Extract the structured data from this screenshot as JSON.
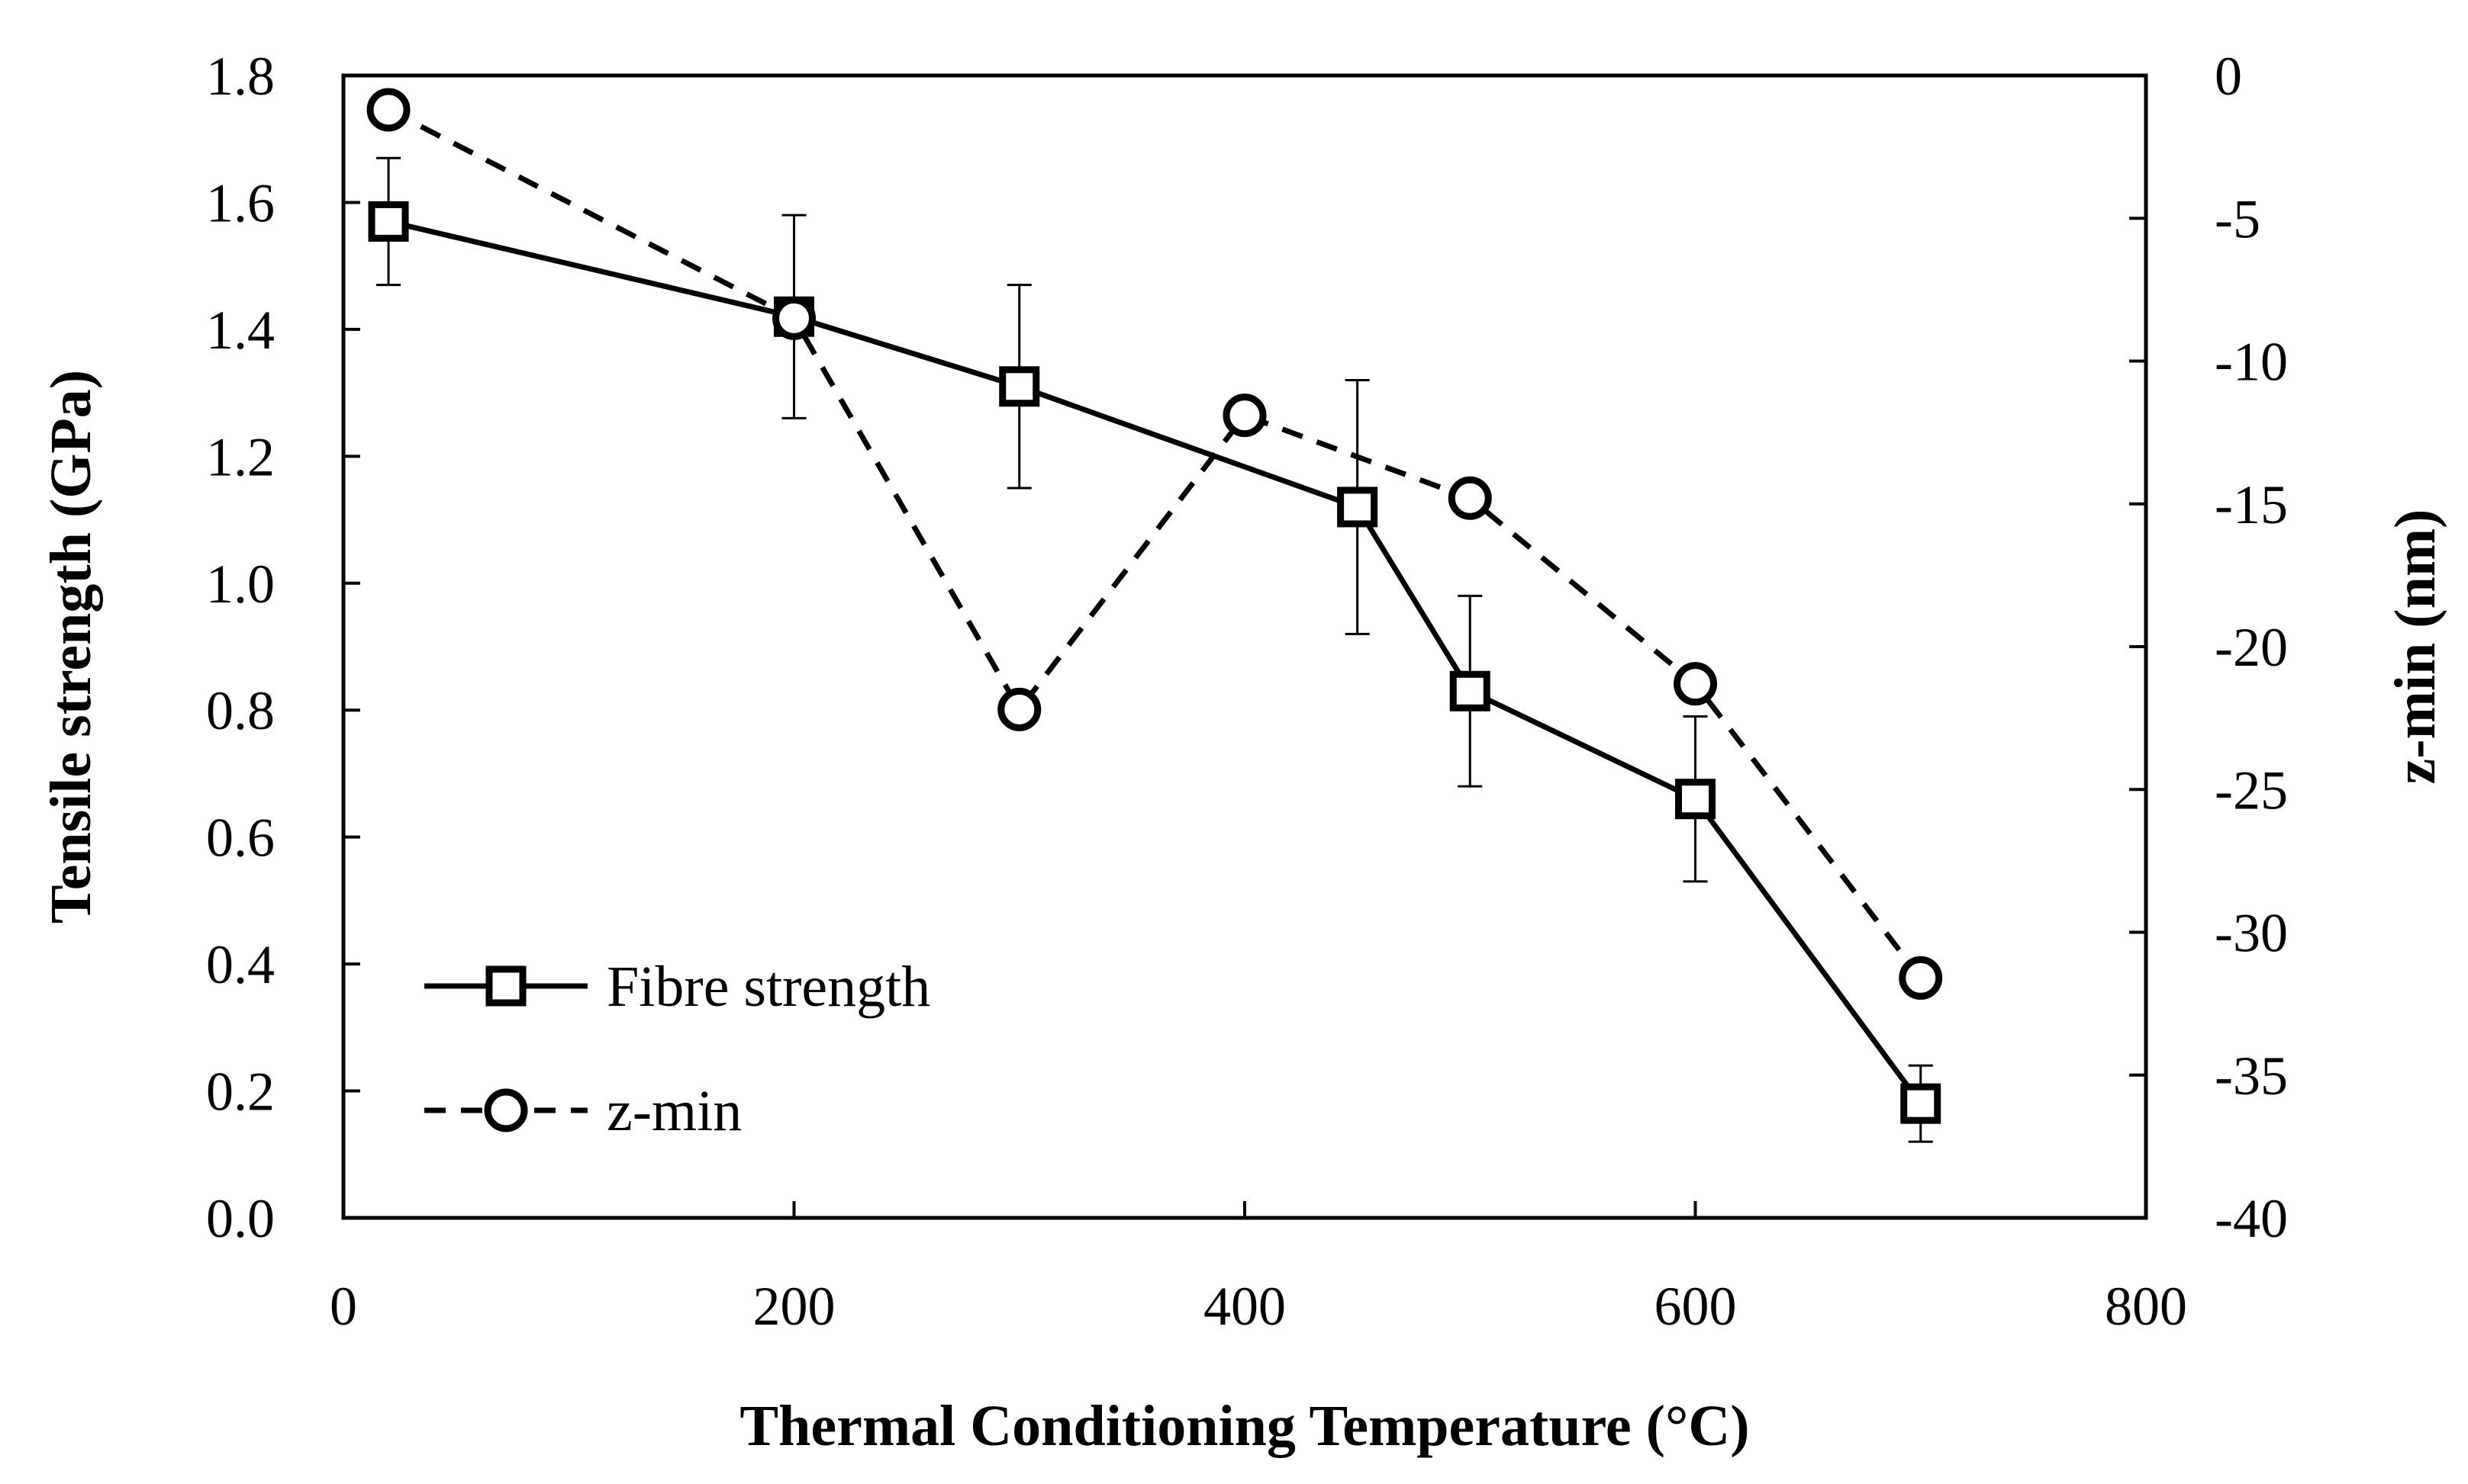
{
  "chart_data": {
    "type": "line",
    "xlabel": "Thermal Conditioning Temperature (°C)",
    "ylabel_left": "Tensile strength (GPa)",
    "ylabel_right": "z-min (nm)",
    "xlim": [
      0,
      800
    ],
    "ylim_left": [
      0,
      1.8
    ],
    "ylim_right": [
      -40,
      0
    ],
    "x_ticks": [
      "0",
      "200",
      "400",
      "600",
      "800"
    ],
    "y_left_ticks": [
      "0.0",
      "0.2",
      "0.4",
      "0.6",
      "0.8",
      "1.0",
      "1.2",
      "1.4",
      "1.6",
      "1.8"
    ],
    "y_right_ticks": [
      "-40",
      "-35",
      "-30",
      "-25",
      "-20",
      "-15",
      "-10",
      "-5",
      "0"
    ],
    "grid": false,
    "legend_position": "bottom-left",
    "series": [
      {
        "name": "Fibre strength",
        "axis": "left",
        "marker": "square",
        "line": "solid",
        "color": "#000000",
        "x": [
          20,
          200,
          300,
          450,
          500,
          600,
          700
        ],
        "y": [
          1.57,
          1.42,
          1.31,
          1.12,
          0.83,
          0.66,
          0.18
        ],
        "error": [
          0.1,
          0.16,
          0.16,
          0.2,
          0.15,
          0.13,
          0.06
        ]
      },
      {
        "name": "z-min",
        "axis": "right",
        "marker": "circle",
        "line": "dashed",
        "color": "#000000",
        "x": [
          20,
          200,
          300,
          400,
          500,
          600,
          700
        ],
        "y": [
          -1.2,
          -8.5,
          -22.2,
          -11.9,
          -14.8,
          -21.3,
          -31.6
        ]
      }
    ]
  }
}
